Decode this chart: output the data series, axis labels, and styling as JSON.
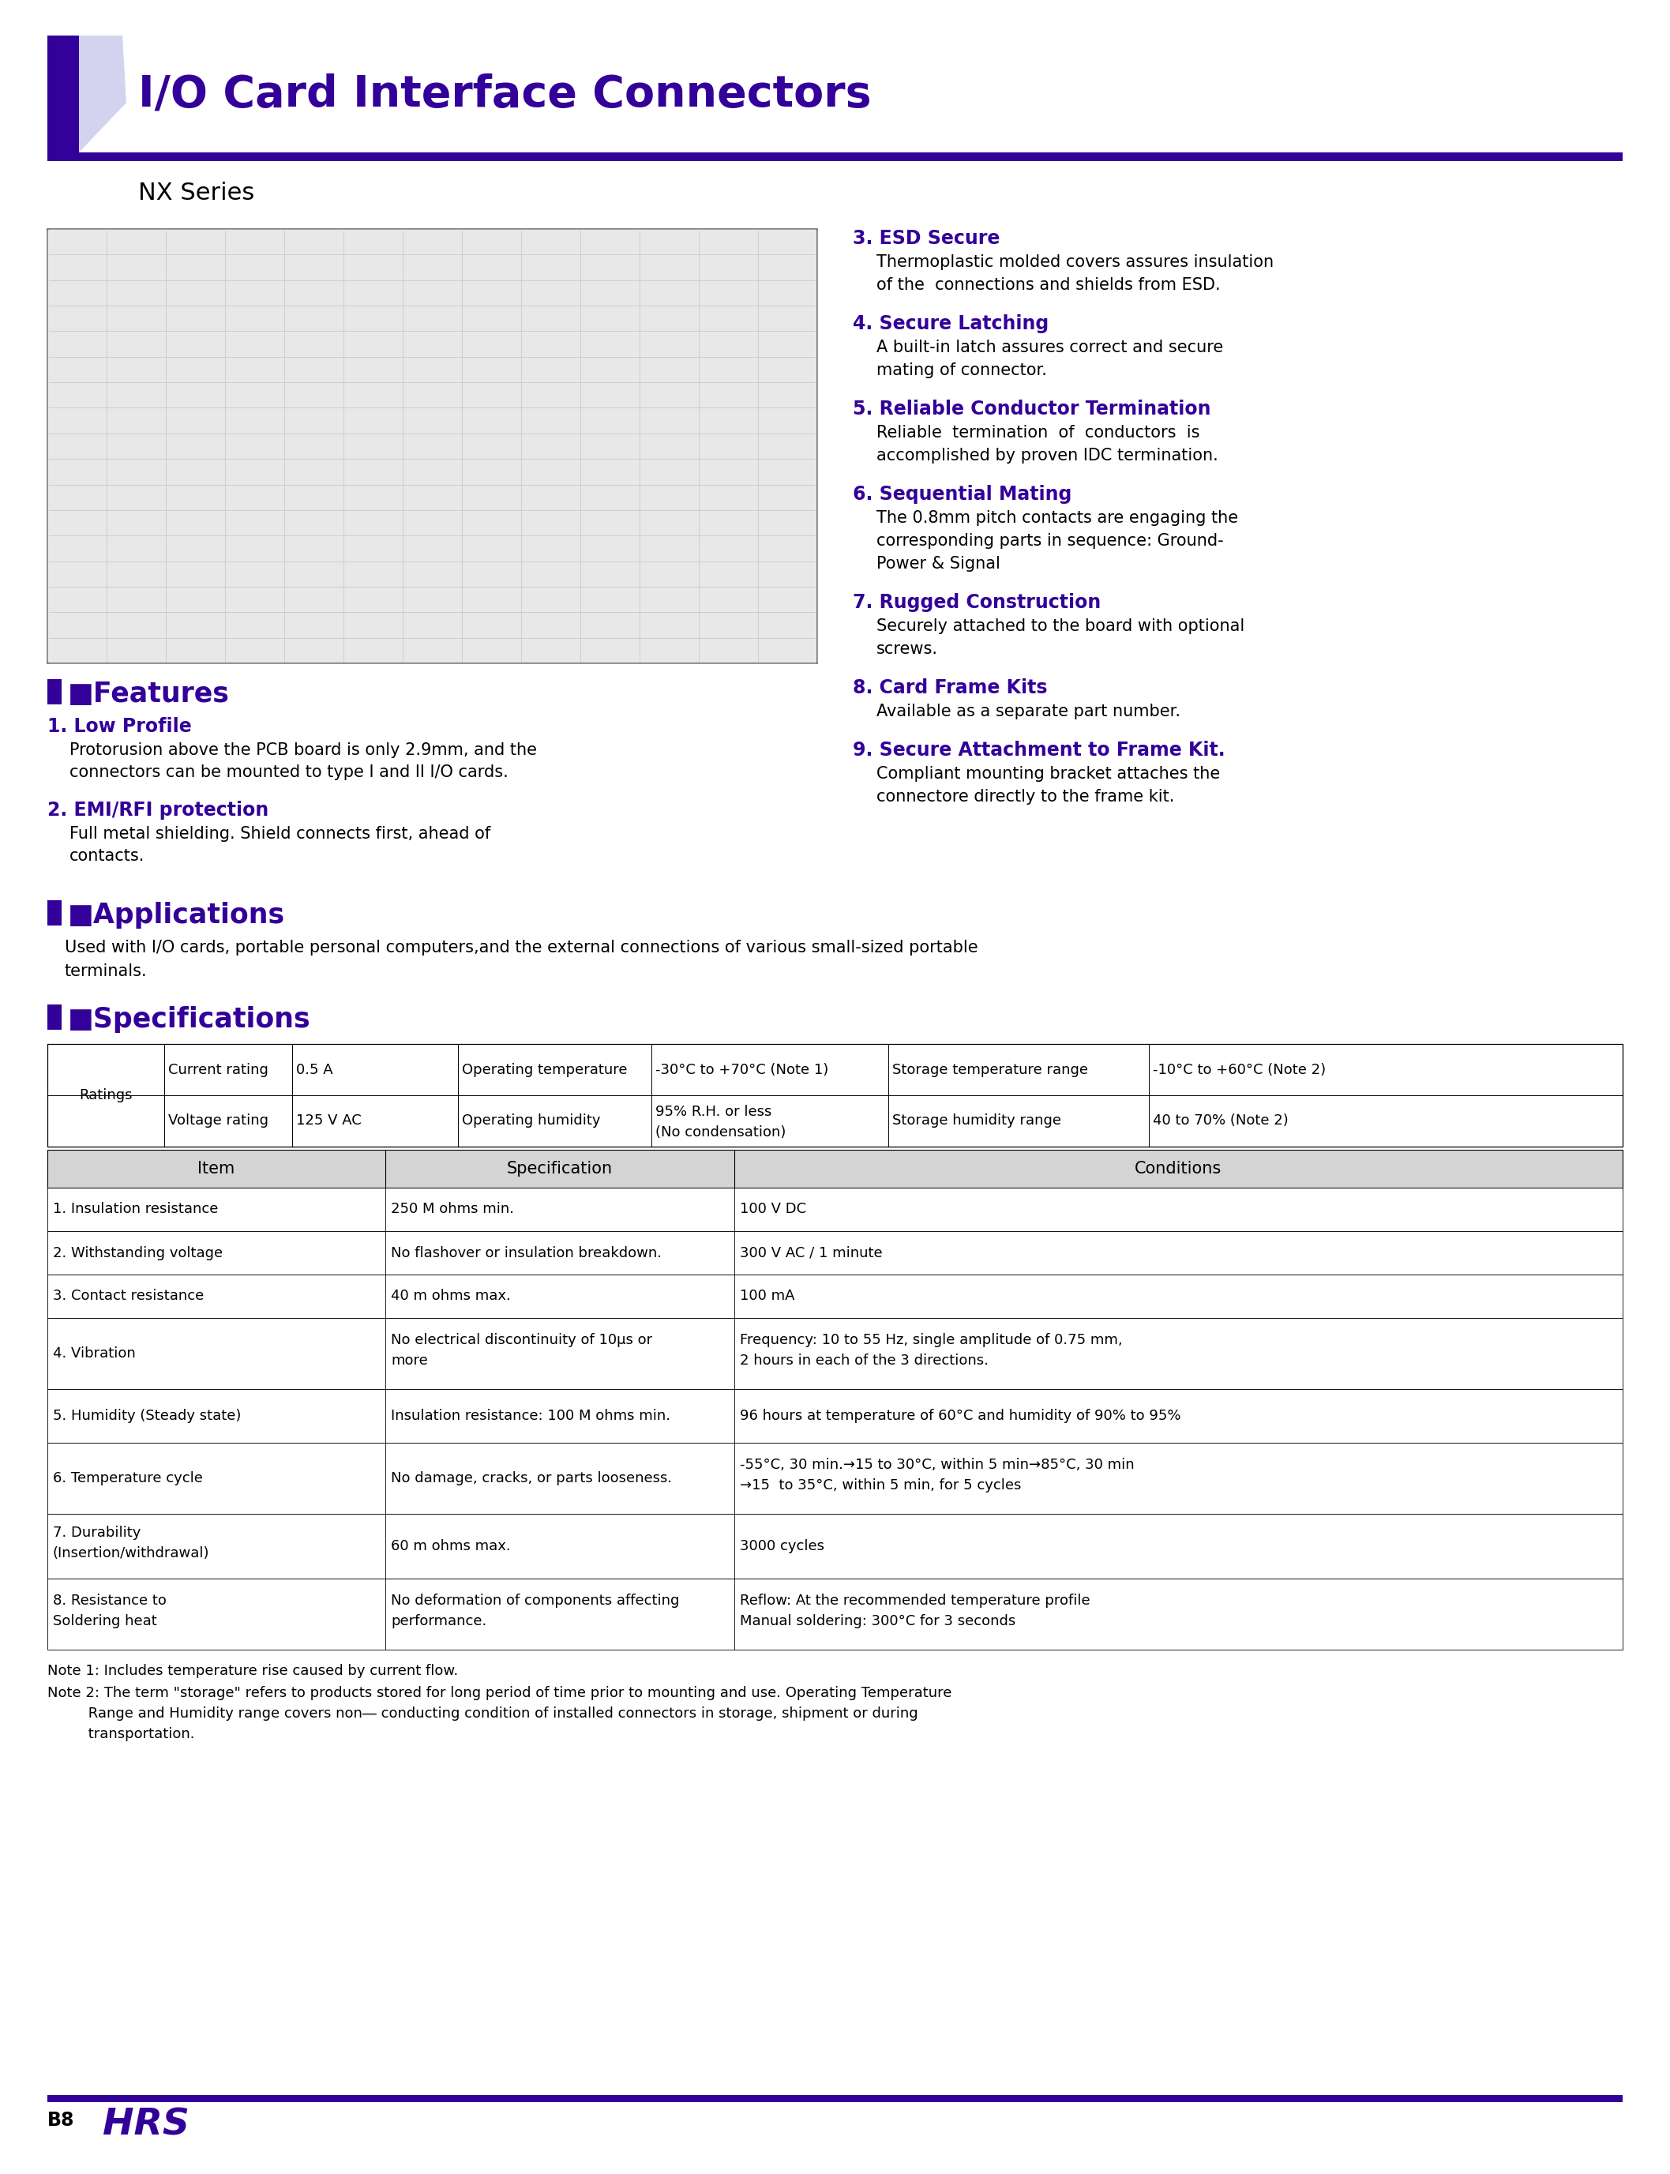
{
  "page_bg": "#ffffff",
  "purple": "#330099",
  "purple_light": "#ccccee",
  "black": "#000000",
  "title": "I/O Card Interface Connectors",
  "subtitle": "NX Series",
  "features_left": [
    {
      "num": "1.",
      "title": "Low Profile",
      "body": [
        "Protorusion above the PCB board is only 2.9mm, and the",
        "connectors can be mounted to type I and II I/O cards."
      ]
    },
    {
      "num": "2.",
      "title": "EMI/RFI protection",
      "body": [
        "Full metal shielding. Shield connects first, ahead of",
        "contacts."
      ]
    }
  ],
  "features_right": [
    {
      "num": "3.",
      "title": "ESD Secure",
      "body": [
        "Thermoplastic molded covers assures insulation",
        "of the  connections and shields from ESD."
      ]
    },
    {
      "num": "4.",
      "title": "Secure Latching",
      "body": [
        "A built-in latch assures correct and secure",
        "mating of connector."
      ]
    },
    {
      "num": "5.",
      "title": "Reliable Conductor Termination",
      "body": [
        "Reliable  termination  of  conductors  is",
        "accomplished by proven IDC termination."
      ]
    },
    {
      "num": "6.",
      "title": "Sequential Mating",
      "body": [
        "The 0.8mm pitch contacts are engaging the",
        "corresponding parts in sequence: Ground-",
        "Power & Signal"
      ]
    },
    {
      "num": "7.",
      "title": "Rugged Construction",
      "body": [
        "Securely attached to the board with optional",
        "screws."
      ]
    },
    {
      "num": "8.",
      "title": "Card Frame Kits",
      "body": [
        "Available as a separate part number."
      ]
    },
    {
      "num": "9.",
      "title": "Secure Attachment to Frame Kit.",
      "body": [
        "Compliant mounting bracket attaches the",
        "connectore directly to the frame kit."
      ]
    }
  ],
  "applications_text": [
    "Used with I/O cards, portable personal computers,and the external connections of various small-sized portable",
    "terminals."
  ],
  "rat_row1": [
    "Current rating",
    "0.5 A",
    "Operating temperature",
    "-30°C to +70°C (Note 1)",
    "Storage temperature range",
    "-10°C to +60°C (Note 2)"
  ],
  "rat_row2_line1": [
    "Voltage rating",
    "125 V AC",
    "Operating humidity",
    "95% R.H. or less",
    "Storage humidity range",
    "40 to 70% (Note 2)"
  ],
  "rat_row2_line2": "(No condensation)",
  "spec_headers": [
    "Item",
    "Specification",
    "Conditions"
  ],
  "spec_rows": [
    {
      "col0": [
        "1. Insulation resistance"
      ],
      "col1": [
        "250 M ohms min."
      ],
      "col2": [
        "100 V DC"
      ]
    },
    {
      "col0": [
        "2. Withstanding voltage"
      ],
      "col1": [
        "No flashover or insulation breakdown."
      ],
      "col2": [
        "300 V AC / 1 minute"
      ]
    },
    {
      "col0": [
        "3. Contact resistance"
      ],
      "col1": [
        "40 m ohms max."
      ],
      "col2": [
        "100 mA"
      ]
    },
    {
      "col0": [
        "4. Vibration"
      ],
      "col1": [
        "No electrical discontinuity of 10μs or",
        "more"
      ],
      "col2": [
        "Frequency: 10 to 55 Hz, single amplitude of 0.75 mm,",
        "2 hours in each of the 3 directions."
      ]
    },
    {
      "col0": [
        "5. Humidity (Steady state)"
      ],
      "col1": [
        "Insulation resistance: 100 M ohms min."
      ],
      "col2": [
        "96 hours at temperature of 60°C and humidity of 90% to 95%"
      ]
    },
    {
      "col0": [
        "6. Temperature cycle"
      ],
      "col1": [
        "No damage, cracks, or parts looseness."
      ],
      "col2": [
        "-55°C, 30 min.→15 to 30°C, within 5 min→85°C, 30 min",
        "→15  to 35°C, within 5 min, for 5 cycles"
      ]
    },
    {
      "col0": [
        "7. Durability",
        "(Insertion/withdrawal)"
      ],
      "col1": [
        "60 m ohms max."
      ],
      "col2": [
        "3000 cycles"
      ]
    },
    {
      "col0": [
        "8. Resistance to",
        "Soldering heat"
      ],
      "col1": [
        "No deformation of components affecting",
        "performance."
      ],
      "col2": [
        "Reflow: At the recommended temperature profile",
        "Manual soldering: 300°C for 3 seconds"
      ]
    }
  ],
  "spec_row_heights": [
    55,
    55,
    55,
    90,
    68,
    90,
    82,
    90
  ],
  "note1": "Note 1: Includes temperature rise caused by current flow.",
  "note2a": "Note 2: The term \"storage\" refers to products stored for long period of time prior to mounting and use. Operating Temperature",
  "note2b": "         Range and Humidity range covers non― conducting condition of installed connectors in storage, shipment or during",
  "note2c": "         transportation.",
  "footer_page": "B8",
  "footer_logo": "HRS"
}
